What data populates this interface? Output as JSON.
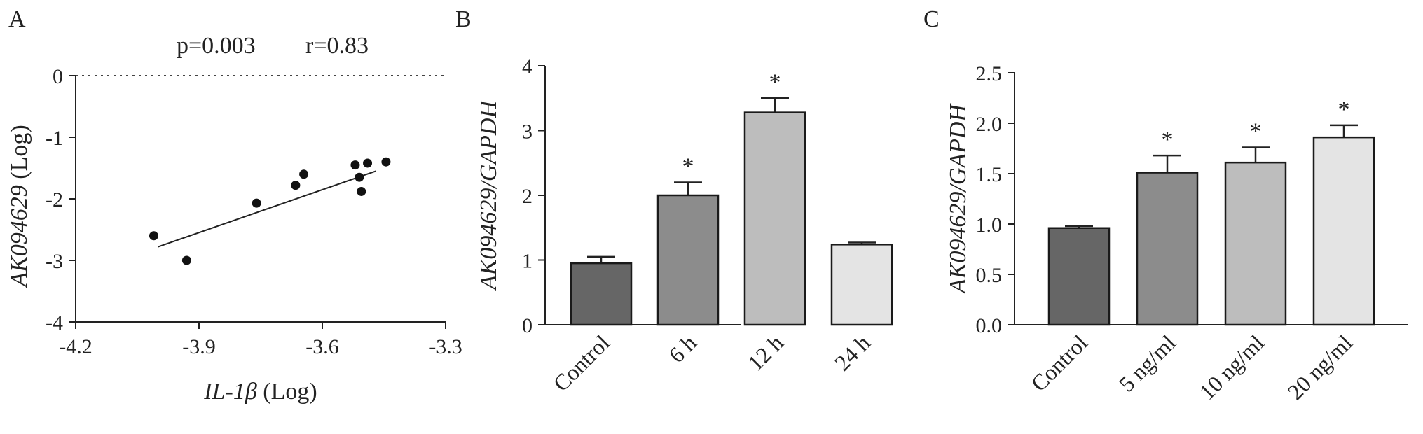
{
  "chart_data": [
    {
      "panel": "A",
      "type": "scatter",
      "annotation_p": "p=0.003",
      "annotation_r": "r=0.83",
      "xlabel_italic": "IL-1β",
      "xlabel_suffix": " (Log)",
      "ylabel_italic": "AK094629",
      "ylabel_suffix": " (Log)",
      "xlim": [
        -4.2,
        -3.3
      ],
      "ylim": [
        -4,
        0
      ],
      "xticks": [
        -4.2,
        -3.9,
        -3.6,
        -3.3
      ],
      "xtick_labels": [
        "-4.2",
        "-3.9",
        "-3.6",
        "-3.3"
      ],
      "yticks": [
        0,
        -1,
        -2,
        -3,
        -4
      ],
      "ytick_labels": [
        "0",
        "-1",
        "-2",
        "-3",
        "-4"
      ],
      "reference_line_y": 0,
      "points": [
        {
          "x": -4.01,
          "y": -2.6
        },
        {
          "x": -3.93,
          "y": -3.0
        },
        {
          "x": -3.76,
          "y": -2.07
        },
        {
          "x": -3.665,
          "y": -1.78
        },
        {
          "x": -3.645,
          "y": -1.6
        },
        {
          "x": -3.52,
          "y": -1.45
        },
        {
          "x": -3.51,
          "y": -1.65
        },
        {
          "x": -3.505,
          "y": -1.88
        },
        {
          "x": -3.49,
          "y": -1.42
        },
        {
          "x": -3.445,
          "y": -1.4
        }
      ],
      "fit_line": {
        "x": [
          -4.0,
          -3.47
        ],
        "y": [
          -2.78,
          -1.55
        ]
      }
    },
    {
      "panel": "B",
      "type": "bar",
      "ylabel_italic": "AK094629/GAPDH",
      "categories": [
        "Control",
        "6 h",
        "12 h",
        "24 h"
      ],
      "values": [
        0.95,
        2.0,
        3.28,
        1.24
      ],
      "errors": [
        0.1,
        0.2,
        0.22,
        0.03
      ],
      "significance": [
        "",
        "*",
        "*",
        ""
      ],
      "ylim": [
        0,
        4
      ],
      "yticks": [
        0,
        1,
        2,
        3,
        4
      ],
      "ytick_labels": [
        "0",
        "1",
        "2",
        "3",
        "4"
      ],
      "bar_colors": [
        "#666666",
        "#8c8c8c",
        "#bdbdbd",
        "#e4e4e4"
      ]
    },
    {
      "panel": "C",
      "type": "bar",
      "ylabel_italic": "AK094629/GAPDH",
      "categories": [
        "Control",
        "5 ng/ml",
        "10 ng/ml",
        "20 ng/ml"
      ],
      "values": [
        0.96,
        1.51,
        1.61,
        1.86
      ],
      "errors": [
        0.02,
        0.17,
        0.15,
        0.12
      ],
      "significance": [
        "",
        "*",
        "*",
        "*"
      ],
      "ylim": [
        0,
        2.5
      ],
      "yticks": [
        0,
        0.5,
        1,
        1.5,
        2,
        2.5
      ],
      "ytick_labels": [
        "0.0",
        "0.5",
        "1.0",
        "1.5",
        "2.0",
        "2.5"
      ],
      "bar_colors": [
        "#666666",
        "#8c8c8c",
        "#bdbdbd",
        "#e4e4e4"
      ]
    }
  ]
}
